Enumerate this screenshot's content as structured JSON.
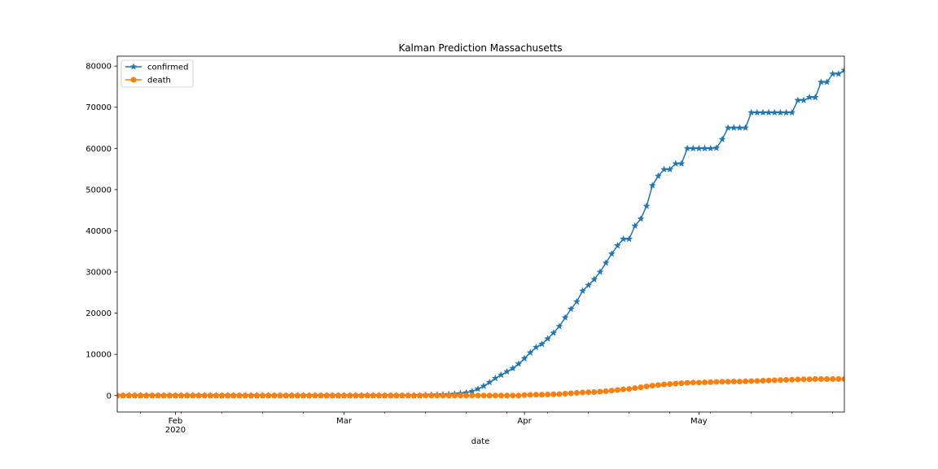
{
  "chart_data": {
    "type": "line",
    "title": "Kalman Prediction Massachusetts",
    "xlabel": "date",
    "ylabel": "",
    "xlim": [
      "2020-01-22",
      "2020-05-26"
    ],
    "ylim": [
      -4000,
      82400
    ],
    "x_ticks": [
      {
        "date": "2020-02-01",
        "label": "Feb",
        "sublabel": "2020"
      },
      {
        "date": "2020-03-01",
        "label": "Mar",
        "sublabel": ""
      },
      {
        "date": "2020-04-01",
        "label": "Apr",
        "sublabel": ""
      },
      {
        "date": "2020-05-01",
        "label": "May",
        "sublabel": ""
      }
    ],
    "y_ticks": [
      0,
      10000,
      20000,
      30000,
      40000,
      50000,
      60000,
      70000,
      80000
    ],
    "y_tick_labels": [
      "0",
      "10000",
      "20000",
      "30000",
      "40000",
      "50000",
      "60000",
      "70000",
      "80000"
    ],
    "grid": false,
    "legend_position": "top-left",
    "series": [
      {
        "name": "confirmed",
        "color": "#1f77b4",
        "marker": "star",
        "points": [
          [
            "2020-01-22",
            0
          ],
          [
            "2020-01-23",
            0
          ],
          [
            "2020-01-24",
            0
          ],
          [
            "2020-01-25",
            0
          ],
          [
            "2020-01-26",
            0
          ],
          [
            "2020-01-27",
            0
          ],
          [
            "2020-01-28",
            0
          ],
          [
            "2020-01-29",
            0
          ],
          [
            "2020-01-30",
            0
          ],
          [
            "2020-01-31",
            0
          ],
          [
            "2020-02-01",
            0
          ],
          [
            "2020-02-02",
            0
          ],
          [
            "2020-02-03",
            0
          ],
          [
            "2020-02-04",
            0
          ],
          [
            "2020-02-05",
            0
          ],
          [
            "2020-02-06",
            0
          ],
          [
            "2020-02-07",
            0
          ],
          [
            "2020-02-08",
            0
          ],
          [
            "2020-02-09",
            0
          ],
          [
            "2020-02-10",
            0
          ],
          [
            "2020-02-11",
            0
          ],
          [
            "2020-02-12",
            0
          ],
          [
            "2020-02-13",
            0
          ],
          [
            "2020-02-14",
            0
          ],
          [
            "2020-02-15",
            0
          ],
          [
            "2020-02-16",
            0
          ],
          [
            "2020-02-17",
            0
          ],
          [
            "2020-02-18",
            0
          ],
          [
            "2020-02-19",
            0
          ],
          [
            "2020-02-20",
            0
          ],
          [
            "2020-02-21",
            0
          ],
          [
            "2020-02-22",
            0
          ],
          [
            "2020-02-23",
            0
          ],
          [
            "2020-02-24",
            0
          ],
          [
            "2020-02-25",
            0
          ],
          [
            "2020-02-26",
            0
          ],
          [
            "2020-02-27",
            0
          ],
          [
            "2020-02-28",
            0
          ],
          [
            "2020-02-29",
            0
          ],
          [
            "2020-03-01",
            0
          ],
          [
            "2020-03-02",
            0
          ],
          [
            "2020-03-03",
            0
          ],
          [
            "2020-03-04",
            0
          ],
          [
            "2020-03-05",
            0
          ],
          [
            "2020-03-06",
            0
          ],
          [
            "2020-03-07",
            0
          ],
          [
            "2020-03-08",
            0
          ],
          [
            "2020-03-09",
            0
          ],
          [
            "2020-03-10",
            0
          ],
          [
            "2020-03-11",
            0
          ],
          [
            "2020-03-12",
            0
          ],
          [
            "2020-03-13",
            0
          ],
          [
            "2020-03-14",
            0
          ],
          [
            "2020-03-15",
            100
          ],
          [
            "2020-03-16",
            150
          ],
          [
            "2020-03-17",
            200
          ],
          [
            "2020-03-18",
            250
          ],
          [
            "2020-03-19",
            300
          ],
          [
            "2020-03-20",
            400
          ],
          [
            "2020-03-21",
            500
          ],
          [
            "2020-03-22",
            700
          ],
          [
            "2020-03-23",
            1000
          ],
          [
            "2020-03-24",
            1600
          ],
          [
            "2020-03-25",
            2300
          ],
          [
            "2020-03-26",
            3200
          ],
          [
            "2020-03-27",
            4200
          ],
          [
            "2020-03-28",
            5000
          ],
          [
            "2020-03-29",
            5800
          ],
          [
            "2020-03-30",
            6600
          ],
          [
            "2020-03-31",
            7700
          ],
          [
            "2020-04-01",
            9000
          ],
          [
            "2020-04-02",
            10400
          ],
          [
            "2020-04-03",
            11700
          ],
          [
            "2020-04-04",
            12500
          ],
          [
            "2020-04-05",
            13800
          ],
          [
            "2020-04-06",
            15200
          ],
          [
            "2020-04-07",
            16800
          ],
          [
            "2020-04-08",
            18900
          ],
          [
            "2020-04-09",
            21000
          ],
          [
            "2020-04-10",
            22800
          ],
          [
            "2020-04-11",
            25400
          ],
          [
            "2020-04-12",
            26800
          ],
          [
            "2020-04-13",
            28200
          ],
          [
            "2020-04-14",
            30000
          ],
          [
            "2020-04-15",
            32200
          ],
          [
            "2020-04-16",
            34400
          ],
          [
            "2020-04-17",
            36400
          ],
          [
            "2020-04-18",
            38000
          ],
          [
            "2020-04-19",
            38000
          ],
          [
            "2020-04-20",
            41200
          ],
          [
            "2020-04-21",
            42900
          ],
          [
            "2020-04-22",
            46000
          ],
          [
            "2020-04-23",
            51000
          ],
          [
            "2020-04-24",
            53300
          ],
          [
            "2020-04-25",
            54900
          ],
          [
            "2020-04-26",
            54900
          ],
          [
            "2020-04-27",
            56300
          ],
          [
            "2020-04-28",
            56300
          ],
          [
            "2020-04-29",
            60000
          ],
          [
            "2020-04-30",
            60000
          ],
          [
            "2020-05-01",
            60000
          ],
          [
            "2020-05-02",
            60000
          ],
          [
            "2020-05-03",
            60000
          ],
          [
            "2020-05-04",
            60100
          ],
          [
            "2020-05-05",
            62200
          ],
          [
            "2020-05-06",
            65000
          ],
          [
            "2020-05-07",
            65000
          ],
          [
            "2020-05-08",
            65000
          ],
          [
            "2020-05-09",
            65000
          ],
          [
            "2020-05-10",
            68700
          ],
          [
            "2020-05-11",
            68700
          ],
          [
            "2020-05-12",
            68700
          ],
          [
            "2020-05-13",
            68700
          ],
          [
            "2020-05-14",
            68700
          ],
          [
            "2020-05-15",
            68700
          ],
          [
            "2020-05-16",
            68700
          ],
          [
            "2020-05-17",
            68700
          ],
          [
            "2020-05-18",
            71700
          ],
          [
            "2020-05-19",
            71700
          ],
          [
            "2020-05-20",
            72400
          ],
          [
            "2020-05-21",
            72400
          ],
          [
            "2020-05-22",
            76100
          ],
          [
            "2020-05-23",
            76100
          ],
          [
            "2020-05-24",
            78100
          ],
          [
            "2020-05-25",
            78100
          ],
          [
            "2020-05-26",
            79000
          ]
        ]
      },
      {
        "name": "death",
        "color": "#ff7f0e",
        "marker": "circle",
        "points": [
          [
            "2020-01-22",
            0
          ],
          [
            "2020-01-23",
            0
          ],
          [
            "2020-01-24",
            0
          ],
          [
            "2020-01-25",
            0
          ],
          [
            "2020-01-26",
            0
          ],
          [
            "2020-01-27",
            0
          ],
          [
            "2020-01-28",
            0
          ],
          [
            "2020-01-29",
            0
          ],
          [
            "2020-01-30",
            0
          ],
          [
            "2020-01-31",
            0
          ],
          [
            "2020-02-01",
            0
          ],
          [
            "2020-02-02",
            0
          ],
          [
            "2020-02-03",
            0
          ],
          [
            "2020-02-04",
            0
          ],
          [
            "2020-02-05",
            0
          ],
          [
            "2020-02-06",
            0
          ],
          [
            "2020-02-07",
            0
          ],
          [
            "2020-02-08",
            0
          ],
          [
            "2020-02-09",
            0
          ],
          [
            "2020-02-10",
            0
          ],
          [
            "2020-02-11",
            0
          ],
          [
            "2020-02-12",
            0
          ],
          [
            "2020-02-13",
            0
          ],
          [
            "2020-02-14",
            0
          ],
          [
            "2020-02-15",
            0
          ],
          [
            "2020-02-16",
            0
          ],
          [
            "2020-02-17",
            0
          ],
          [
            "2020-02-18",
            0
          ],
          [
            "2020-02-19",
            0
          ],
          [
            "2020-02-20",
            0
          ],
          [
            "2020-02-21",
            0
          ],
          [
            "2020-02-22",
            0
          ],
          [
            "2020-02-23",
            0
          ],
          [
            "2020-02-24",
            0
          ],
          [
            "2020-02-25",
            0
          ],
          [
            "2020-02-26",
            0
          ],
          [
            "2020-02-27",
            0
          ],
          [
            "2020-02-28",
            0
          ],
          [
            "2020-02-29",
            0
          ],
          [
            "2020-03-01",
            0
          ],
          [
            "2020-03-02",
            0
          ],
          [
            "2020-03-03",
            0
          ],
          [
            "2020-03-04",
            0
          ],
          [
            "2020-03-05",
            0
          ],
          [
            "2020-03-06",
            0
          ],
          [
            "2020-03-07",
            0
          ],
          [
            "2020-03-08",
            0
          ],
          [
            "2020-03-09",
            0
          ],
          [
            "2020-03-10",
            0
          ],
          [
            "2020-03-11",
            0
          ],
          [
            "2020-03-12",
            0
          ],
          [
            "2020-03-13",
            0
          ],
          [
            "2020-03-14",
            0
          ],
          [
            "2020-03-15",
            0
          ],
          [
            "2020-03-16",
            0
          ],
          [
            "2020-03-17",
            0
          ],
          [
            "2020-03-18",
            0
          ],
          [
            "2020-03-19",
            0
          ],
          [
            "2020-03-20",
            0
          ],
          [
            "2020-03-21",
            0
          ],
          [
            "2020-03-22",
            0
          ],
          [
            "2020-03-23",
            0
          ],
          [
            "2020-03-24",
            0
          ],
          [
            "2020-03-25",
            0
          ],
          [
            "2020-03-26",
            0
          ],
          [
            "2020-03-27",
            0
          ],
          [
            "2020-03-28",
            0
          ],
          [
            "2020-03-29",
            0
          ],
          [
            "2020-03-30",
            0
          ],
          [
            "2020-03-31",
            0
          ],
          [
            "2020-04-01",
            100
          ],
          [
            "2020-04-02",
            150
          ],
          [
            "2020-04-03",
            200
          ],
          [
            "2020-04-04",
            200
          ],
          [
            "2020-04-05",
            250
          ],
          [
            "2020-04-06",
            300
          ],
          [
            "2020-04-07",
            350
          ],
          [
            "2020-04-08",
            450
          ],
          [
            "2020-04-09",
            550
          ],
          [
            "2020-04-10",
            650
          ],
          [
            "2020-04-11",
            750
          ],
          [
            "2020-04-12",
            800
          ],
          [
            "2020-04-13",
            850
          ],
          [
            "2020-04-14",
            950
          ],
          [
            "2020-04-15",
            1050
          ],
          [
            "2020-04-16",
            1200
          ],
          [
            "2020-04-17",
            1350
          ],
          [
            "2020-04-18",
            1500
          ],
          [
            "2020-04-19",
            1600
          ],
          [
            "2020-04-20",
            1800
          ],
          [
            "2020-04-21",
            2000
          ],
          [
            "2020-04-22",
            2200
          ],
          [
            "2020-04-23",
            2400
          ],
          [
            "2020-04-24",
            2550
          ],
          [
            "2020-04-25",
            2700
          ],
          [
            "2020-04-26",
            2800
          ],
          [
            "2020-04-27",
            2900
          ],
          [
            "2020-04-28",
            3000
          ],
          [
            "2020-04-29",
            3100
          ],
          [
            "2020-04-30",
            3150
          ],
          [
            "2020-05-01",
            3150
          ],
          [
            "2020-05-02",
            3200
          ],
          [
            "2020-05-03",
            3250
          ],
          [
            "2020-05-04",
            3300
          ],
          [
            "2020-05-05",
            3350
          ],
          [
            "2020-05-06",
            3350
          ],
          [
            "2020-05-07",
            3400
          ],
          [
            "2020-05-08",
            3400
          ],
          [
            "2020-05-09",
            3450
          ],
          [
            "2020-05-10",
            3500
          ],
          [
            "2020-05-11",
            3550
          ],
          [
            "2020-05-12",
            3600
          ],
          [
            "2020-05-13",
            3650
          ],
          [
            "2020-05-14",
            3700
          ],
          [
            "2020-05-15",
            3750
          ],
          [
            "2020-05-16",
            3800
          ],
          [
            "2020-05-17",
            3850
          ],
          [
            "2020-05-18",
            3900
          ],
          [
            "2020-05-19",
            3950
          ],
          [
            "2020-05-20",
            3950
          ],
          [
            "2020-05-21",
            4000
          ],
          [
            "2020-05-22",
            4000
          ],
          [
            "2020-05-23",
            4000
          ],
          [
            "2020-05-24",
            4000
          ],
          [
            "2020-05-25",
            4000
          ],
          [
            "2020-05-26",
            4000
          ]
        ]
      }
    ]
  }
}
